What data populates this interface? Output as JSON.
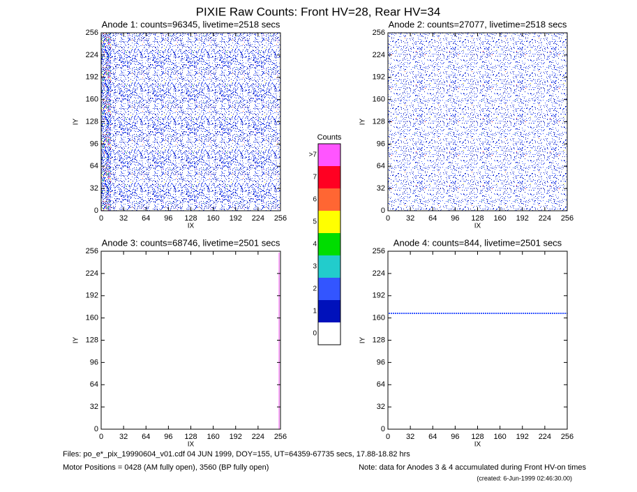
{
  "title": "PIXIE Raw Counts:  Front HV=28, Rear HV=34",
  "chart_data": [
    {
      "type": "heatmap",
      "title": "Anode 1: counts=96345, livetime=2518 secs",
      "x_label": "IX",
      "y_label": "IY",
      "xlim": [
        0,
        256
      ],
      "ylim": [
        0,
        256
      ],
      "xticks": [
        0,
        32,
        64,
        96,
        128,
        160,
        192,
        224,
        256
      ],
      "yticks": [
        0,
        32,
        64,
        96,
        128,
        160,
        192,
        224,
        256
      ]
    },
    {
      "type": "heatmap",
      "title": "Anode 2: counts=27077, livetime=2518 secs",
      "x_label": "IX",
      "y_label": "IY",
      "xlim": [
        0,
        256
      ],
      "ylim": [
        0,
        256
      ],
      "xticks": [
        0,
        32,
        64,
        96,
        128,
        160,
        192,
        224,
        256
      ],
      "yticks": [
        0,
        32,
        64,
        96,
        128,
        160,
        192,
        224,
        256
      ]
    },
    {
      "type": "heatmap",
      "title": "Anode 3: counts=68746, livetime=2501 secs",
      "x_label": "IX",
      "y_label": "IY",
      "xlim": [
        0,
        256
      ],
      "ylim": [
        0,
        256
      ],
      "xticks": [
        0,
        32,
        64,
        96,
        128,
        160,
        192,
        224,
        256
      ],
      "yticks": [
        0,
        32,
        64,
        96,
        128,
        160,
        192,
        224,
        256
      ]
    },
    {
      "type": "heatmap",
      "title": "Anode 4: counts=844, livetime=2501 secs",
      "x_label": "IX",
      "y_label": "IY",
      "xlim": [
        0,
        256
      ],
      "ylim": [
        0,
        256
      ],
      "xticks": [
        0,
        32,
        64,
        96,
        128,
        160,
        192,
        224,
        256
      ],
      "yticks": [
        0,
        32,
        64,
        96,
        128,
        160,
        192,
        224,
        256
      ]
    }
  ],
  "colorbar": {
    "title": "Counts",
    "levels": [
      {
        "label": "0",
        "color": "#ffffff"
      },
      {
        "label": "1",
        "color": "#0011bb"
      },
      {
        "label": "2",
        "color": "#3355ff"
      },
      {
        "label": "3",
        "color": "#22cccc"
      },
      {
        "label": "4",
        "color": "#00dd00"
      },
      {
        "label": "5",
        "color": "#ffff00"
      },
      {
        "label": "6",
        "color": "#ff6633"
      },
      {
        "label": "7",
        "color": "#ff0022"
      },
      {
        "label": ">7",
        "color": "#ff55ff"
      }
    ]
  },
  "footer": {
    "files": "Files: po_e*_pix_19990604_v01.cdf    04 JUN 1999, DOY=155, UT=64359-67735 secs, 17.88-18.82 hrs",
    "motor": "Motor Positions = 0428 (AM fully open), 3560 (BP fully open)",
    "note": "Note: data for Anodes 3 & 4 accumulated during Front HV-on times",
    "created": "(created:  6-Jun-1999 02:46:30.00)"
  }
}
